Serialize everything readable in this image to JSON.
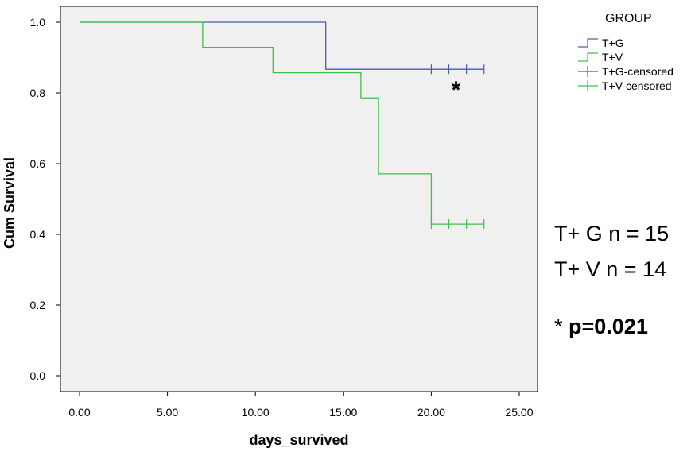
{
  "chart_data": {
    "type": "line",
    "subtype": "kaplan-meier",
    "xlabel": "days_survived",
    "ylabel": "Cum Survival",
    "xlim": [
      0,
      25
    ],
    "ylim": [
      0,
      1
    ],
    "x_ticks": [
      "0.00",
      "5.00",
      "10.00",
      "15.00",
      "20.00",
      "25.00"
    ],
    "y_ticks": [
      "0.0",
      "0.2",
      "0.4",
      "0.6",
      "0.8",
      "1.0"
    ],
    "grid": false,
    "legend_position": "top-right",
    "legend": {
      "title": "GROUP",
      "entries": [
        "T+G",
        "T+V",
        "T+G-censored",
        "T+V-censored"
      ]
    },
    "series": [
      {
        "name": "T+G",
        "color": "#4a5ea8",
        "steps": [
          [
            0,
            1.0
          ],
          [
            14,
            0.867
          ],
          [
            23,
            0.867
          ]
        ],
        "censored_x": [
          20,
          21,
          22,
          23
        ]
      },
      {
        "name": "T+V",
        "color": "#3fbf4a",
        "steps": [
          [
            0,
            1.0
          ],
          [
            7,
            0.929
          ],
          [
            11,
            0.857
          ],
          [
            16,
            0.786
          ],
          [
            17,
            0.571
          ],
          [
            20,
            0.429
          ],
          [
            23,
            0.429
          ]
        ],
        "censored_x": [
          20,
          21,
          22,
          23
        ]
      }
    ],
    "annotations": {
      "star": "*",
      "n_tg": "T+ G  n = 15",
      "n_tv": "T+ V  n = 14",
      "p_star": "* ",
      "p_value": "p=0.021"
    }
  }
}
